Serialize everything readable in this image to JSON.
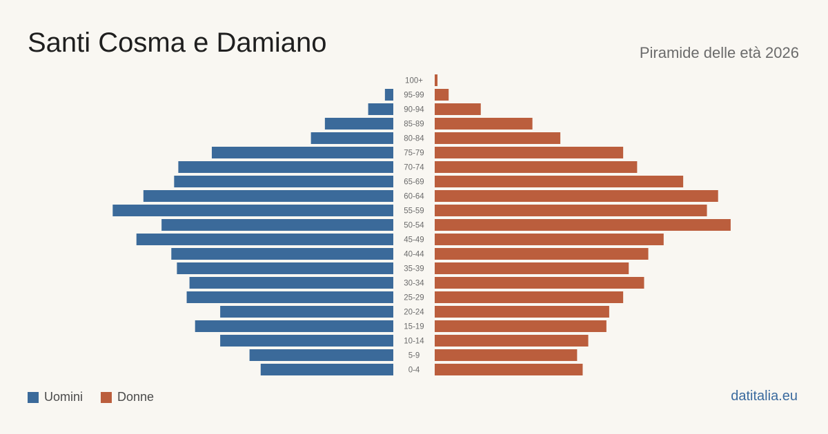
{
  "header": {
    "title": "Santi Cosma e Damiano",
    "subtitle": "Piramide delle età 2026"
  },
  "legend": {
    "men_label": "Uomini",
    "women_label": "Donne"
  },
  "footer": {
    "source": "datitalia.eu"
  },
  "colors": {
    "men": "#3b6a9a",
    "women": "#bb5e3d",
    "background": "#f9f7f2"
  },
  "chart_data": {
    "type": "bar",
    "orientation": "horizontal-pyramid",
    "categories": [
      "100+",
      "95-99",
      "90-94",
      "85-89",
      "80-84",
      "75-79",
      "70-74",
      "65-69",
      "60-64",
      "55-59",
      "50-54",
      "45-49",
      "40-44",
      "35-39",
      "30-34",
      "25-29",
      "20-24",
      "15-19",
      "10-14",
      "5-9",
      "0-4"
    ],
    "series": [
      {
        "name": "Uomini",
        "values": [
          0,
          6,
          18,
          49,
          59,
          130,
          154,
          157,
          179,
          201,
          166,
          184,
          159,
          155,
          146,
          148,
          124,
          142,
          124,
          103,
          95
        ]
      },
      {
        "name": "Donne",
        "values": [
          2,
          10,
          33,
          70,
          90,
          135,
          145,
          178,
          203,
          195,
          212,
          164,
          153,
          139,
          150,
          135,
          125,
          123,
          110,
          102,
          106
        ]
      }
    ],
    "xlim": [
      0,
      215
    ],
    "grid": false,
    "legend_position": "bottom-left"
  }
}
